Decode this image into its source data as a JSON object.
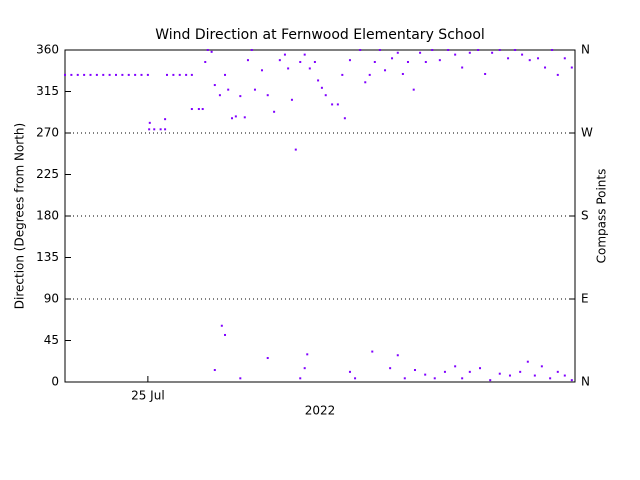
{
  "chart_data": {
    "type": "scatter",
    "title": "Wind Direction at Fernwood Elementary School",
    "ylabel": "Direction (Degrees from North)",
    "y2label": "Compass Points",
    "xlabel": "2022",
    "x": [
      23.7,
      23.8,
      23.9,
      24.0,
      24.1,
      24.2,
      24.3,
      24.4,
      24.5,
      24.6,
      24.7,
      24.8,
      24.9,
      25.0,
      25.02,
      25.1,
      25.2,
      25.27,
      25.03,
      25.27,
      25.3,
      25.4,
      25.5,
      25.6,
      25.69,
      25.69,
      25.8,
      25.86,
      25.9,
      25.94,
      26.0,
      26.05,
      26.13,
      26.21,
      26.26,
      26.32,
      26.38,
      26.45,
      26.52,
      26.57,
      26.63,
      26.68,
      26.79,
      26.88,
      26.98,
      27.07,
      27.15,
      27.2,
      27.26,
      27.32,
      27.39,
      27.46,
      27.54,
      27.62,
      27.67,
      27.73,
      27.79,
      27.89,
      27.98,
      28.05,
      28.09,
      28.17,
      28.33,
      28.41,
      28.48,
      28.56,
      28.64,
      28.72,
      28.83,
      28.92,
      29.0,
      29.08,
      29.17,
      29.27,
      29.36,
      29.46,
      29.58,
      29.71,
      29.82,
      29.93,
      30.05,
      30.18,
      30.29,
      30.4,
      30.52,
      30.65,
      30.76,
      30.87,
      30.99,
      31.12,
      31.23,
      31.34,
      31.43,
      31.54,
      31.65,
      26.16,
      26.21,
      26.05,
      26.45,
      26.88,
      27.39,
      27.46,
      27.5,
      28.17,
      28.25,
      28.52,
      28.8,
      28.92,
      29.03,
      29.19,
      29.35,
      29.5,
      29.66,
      29.82,
      29.93,
      30.05,
      30.21,
      30.37,
      30.52,
      30.68,
      30.84,
      30.96,
      31.07,
      31.18,
      31.31,
      31.43,
      31.54,
      31.65
    ],
    "series": [
      {
        "color": "#8000ff",
        "values": [
          333,
          333,
          333,
          333,
          333,
          333,
          333,
          333,
          333,
          333,
          333,
          333,
          333,
          333,
          274,
          274,
          274,
          274,
          281,
          285,
          333,
          333,
          333,
          333,
          333,
          296,
          296,
          296,
          347,
          360,
          358,
          322,
          311,
          333,
          317,
          286,
          288,
          310,
          287,
          349,
          360,
          317,
          338,
          311,
          293,
          349,
          355,
          340,
          306,
          252,
          347,
          355,
          340,
          347,
          327,
          319,
          311,
          301,
          301,
          333,
          286,
          349,
          360,
          325,
          333,
          347,
          360,
          338,
          351,
          357,
          334,
          347,
          317,
          357,
          347,
          360,
          349,
          360,
          355,
          341,
          357,
          360,
          334,
          357,
          360,
          351,
          360,
          355,
          349,
          351,
          341,
          360,
          333,
          351,
          341,
          61,
          51,
          13,
          4,
          26,
          4,
          15,
          30,
          11,
          4,
          33,
          15,
          29,
          4,
          13,
          8,
          4,
          11,
          17,
          4,
          11,
          15,
          2,
          9,
          7,
          11,
          22,
          7,
          17,
          4,
          11,
          7,
          2
        ]
      }
    ],
    "xlim": [
      23.7,
      31.7
    ],
    "xticks": [
      {
        "value": 25,
        "label": "25 Jul"
      }
    ],
    "ylim": [
      0,
      360
    ],
    "yticks": [
      0,
      45,
      90,
      135,
      180,
      225,
      270,
      315,
      360
    ],
    "y2lim": [
      0,
      360
    ],
    "y2ticks": [
      {
        "value": 0,
        "label": "N"
      },
      {
        "value": 90,
        "label": "E"
      },
      {
        "value": 180,
        "label": "S"
      },
      {
        "value": 270,
        "label": "W"
      },
      {
        "value": 360,
        "label": "N"
      }
    ],
    "grid": true
  }
}
